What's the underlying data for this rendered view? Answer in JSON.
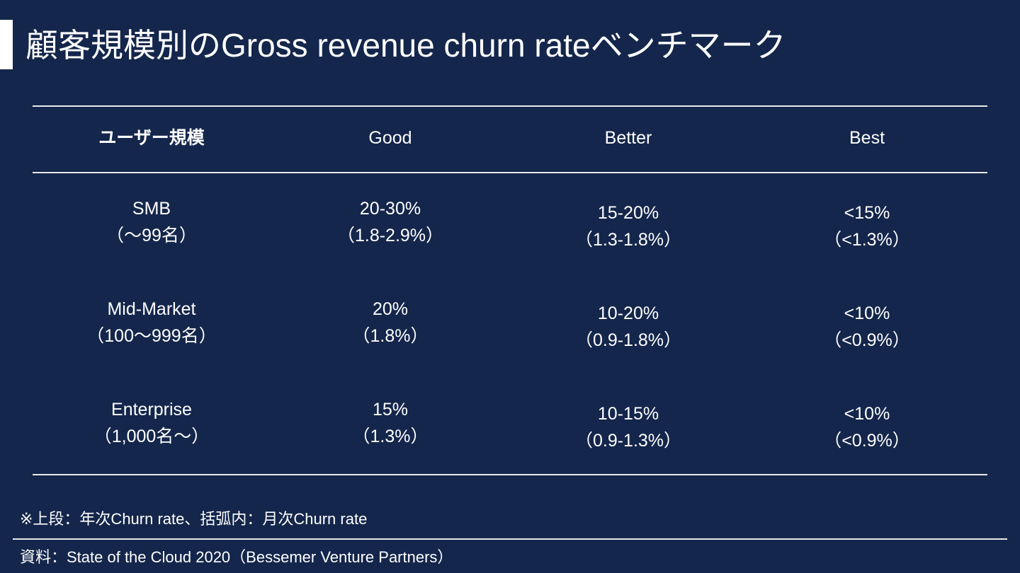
{
  "title": "顧客規模別のGross revenue churn rateベンチマーク",
  "table": {
    "headers": [
      "ユーザー規模",
      "Good",
      "Better",
      "Best"
    ],
    "rows": [
      {
        "segment": "SMB",
        "segment_sub": "（〜99名）",
        "good": "20-30%",
        "good_sub": "（1.8-2.9%）",
        "better": "15-20%",
        "better_sub": "（1.3-1.8%）",
        "best": "<15%",
        "best_sub": "（<1.3%）"
      },
      {
        "segment": "Mid-Market",
        "segment_sub": "（100〜999名）",
        "good": "20%",
        "good_sub": "（1.8%）",
        "better": "10-20%",
        "better_sub": "（0.9-1.8%）",
        "best": "<10%",
        "best_sub": "（<0.9%）"
      },
      {
        "segment": "Enterprise",
        "segment_sub": "（1,000名〜）",
        "good": "15%",
        "good_sub": "（1.3%）",
        "better": "10-15%",
        "better_sub": "（0.9-1.3%）",
        "best": "<10%",
        "best_sub": "（<0.9%）"
      }
    ]
  },
  "note": "※上段：年次Churn rate、括弧内：月次Churn rate",
  "source": "資料：State of the Cloud 2020（Bessemer Venture Partners）"
}
